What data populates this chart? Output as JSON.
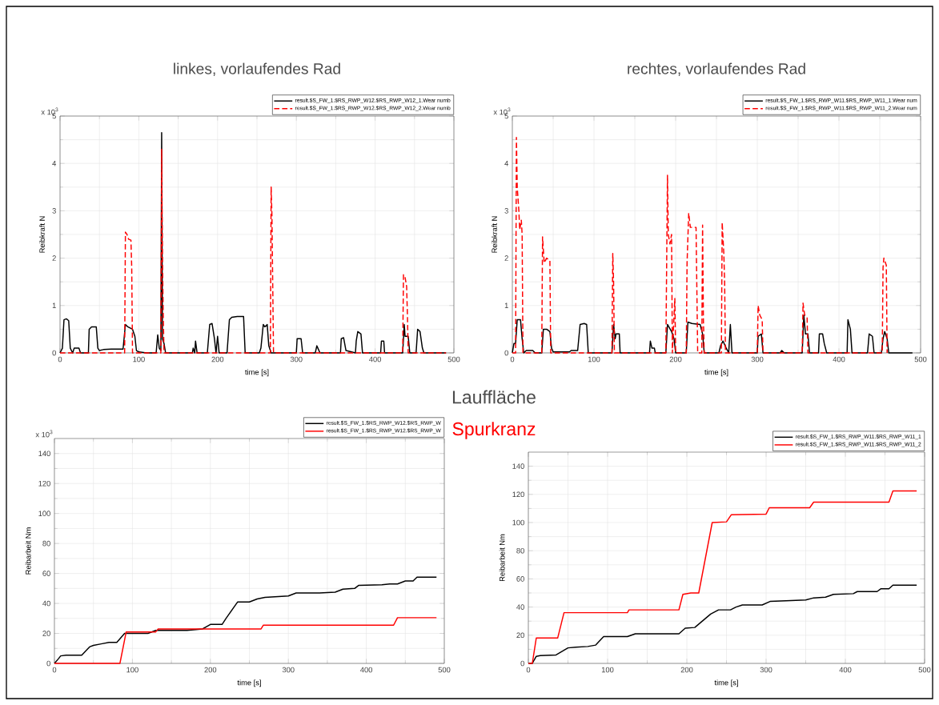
{
  "chart_data": [
    {
      "type": "line",
      "title": "linkes, vorlaufendes Rad",
      "xlabel": "time [s]",
      "ylabel": "Reibkraft N",
      "xlim": [
        0,
        500
      ],
      "xticks": [
        0,
        100,
        200,
        300,
        400,
        500
      ],
      "ylim": [
        0,
        5
      ],
      "yticks": [
        0,
        1,
        2,
        3,
        4,
        5
      ],
      "grid": true,
      "legend": "top right",
      "annotations": [
        "x 10$^{3}$"
      ],
      "series": [
        {
          "name": "result.$S_FW_1.$RS_RWP_W12.$RS_RWP_W12_1.Wear numb",
          "color": "#000000",
          "line_style": "solid",
          "x": [
            0,
            3,
            5,
            8,
            11,
            13,
            16,
            18,
            24,
            26,
            36,
            37,
            40,
            46,
            48,
            50,
            55,
            65,
            80,
            83,
            86,
            92,
            95,
            97,
            100,
            110,
            122,
            124,
            126,
            128,
            129,
            130,
            132,
            134,
            140,
            168,
            169,
            171,
            172,
            174,
            187,
            190,
            193,
            196,
            198,
            200,
            202,
            212,
            215,
            218,
            225,
            233,
            235,
            253,
            255,
            258,
            260,
            263,
            265,
            268,
            300,
            301,
            306,
            308,
            324,
            326,
            330,
            356,
            357,
            360,
            363,
            375,
            376,
            378,
            382,
            384,
            407,
            408,
            411,
            412,
            435,
            437,
            438,
            442,
            444,
            452,
            454,
            457,
            460,
            462,
            490
          ],
          "values": [
            0,
            0.1,
            0.7,
            0.72,
            0.68,
            0.1,
            0,
            0.1,
            0.1,
            0,
            0,
            0.5,
            0.55,
            0.55,
            0.1,
            0.05,
            0.07,
            0.08,
            0.08,
            0.6,
            0.55,
            0.5,
            0.35,
            0.05,
            0.02,
            0,
            0,
            0.38,
            0.1,
            0.05,
            4.65,
            0.3,
            0.2,
            0,
            0,
            0,
            0.1,
            0,
            0.25,
            0,
            0,
            0.6,
            0.62,
            0.3,
            0,
            0.35,
            0,
            0,
            0.7,
            0.75,
            0.77,
            0.77,
            0,
            0,
            0.1,
            0.6,
            0.55,
            0.6,
            0.15,
            0,
            0,
            0.3,
            0.3,
            0,
            0,
            0.15,
            0,
            0,
            0.3,
            0.32,
            0.05,
            0,
            0.25,
            0.45,
            0.4,
            0,
            0,
            0.25,
            0.25,
            0,
            0,
            0.6,
            0.35,
            0.35,
            0,
            0,
            0.5,
            0.45,
            0.1,
            0,
            0
          ]
        },
        {
          "name": "result.$S_FW_1.$RS_RWP_W12.$RS_RWP_W12_2.Wear numb",
          "color": "#ff0000",
          "line_style": "dashed",
          "x": [
            0,
            82,
            83,
            85,
            87,
            90,
            91,
            92,
            128,
            129,
            130,
            131,
            132,
            267,
            268,
            269,
            271,
            435,
            436,
            438,
            440,
            441,
            442,
            490
          ],
          "values": [
            0,
            0,
            2.55,
            2.5,
            2.4,
            2.38,
            1.8,
            0,
            0,
            4.3,
            2.0,
            0.8,
            0,
            0,
            3.5,
            2.9,
            0,
            0,
            1.65,
            1.6,
            1.4,
            0.8,
            0,
            0
          ]
        }
      ]
    },
    {
      "type": "line",
      "title": "rechtes, vorlaufendes Rad",
      "xlabel": "time [s]",
      "ylabel": "Reibkraft N",
      "xlim": [
        0,
        500
      ],
      "xticks": [
        0,
        100,
        200,
        300,
        400,
        500
      ],
      "ylim": [
        0,
        5
      ],
      "yticks": [
        0,
        1,
        2,
        3,
        4,
        5
      ],
      "grid": true,
      "legend": "top right",
      "annotations": [
        "x 10$^{3}$"
      ],
      "series": [
        {
          "name": "result.$S_FW_1.$RS_RWP_W11.$RS_RWP_W11_1.Wear num",
          "color": "#000000",
          "line_style": "solid",
          "x": [
            0,
            2,
            4,
            6,
            10,
            12,
            14,
            17,
            25,
            28,
            36,
            38,
            42,
            46,
            48,
            50,
            70,
            72,
            80,
            83,
            88,
            91,
            93,
            122,
            124,
            126,
            127,
            131,
            132,
            168,
            169,
            171,
            174,
            175,
            188,
            190,
            195,
            198,
            200,
            213,
            215,
            220,
            230,
            233,
            235,
            253,
            255,
            258,
            262,
            265,
            267,
            269,
            300,
            301,
            305,
            307,
            328,
            330,
            333,
            355,
            357,
            359,
            362,
            364,
            375,
            376,
            380,
            382,
            385,
            410,
            411,
            414,
            416,
            435,
            437,
            441,
            443,
            452,
            454,
            456,
            459,
            461,
            490
          ],
          "values": [
            0,
            0.2,
            0.2,
            0.7,
            0.7,
            0.3,
            0,
            0.05,
            0.05,
            0,
            0,
            0.5,
            0.5,
            0.45,
            0.1,
            0.02,
            0.02,
            0.05,
            0.05,
            0.6,
            0.62,
            0.6,
            0,
            0,
            0.6,
            0.3,
            0.4,
            0.4,
            0,
            0,
            0.25,
            0.1,
            0.1,
            0,
            0,
            0.6,
            0.45,
            0.3,
            0,
            0,
            0.65,
            0.62,
            0.6,
            0.4,
            0,
            0,
            0.15,
            0.25,
            0.1,
            0,
            0.6,
            0,
            0,
            0.35,
            0.4,
            0,
            0,
            0.05,
            0,
            0,
            0.8,
            0.4,
            0.4,
            0,
            0,
            0.4,
            0.4,
            0.2,
            0,
            0,
            0.7,
            0.5,
            0,
            0,
            0.4,
            0.35,
            0,
            0,
            0.3,
            0.45,
            0.3,
            0,
            0
          ]
        },
        {
          "name": "result.$S_FW_1.$RS_RWP_W11.$RS_RWP_W11_2.Wear num",
          "color": "#ff0000",
          "line_style": "dashed",
          "x": [
            0,
            4,
            5,
            6,
            8,
            9,
            11,
            12,
            13,
            36,
            37,
            39,
            42,
            46,
            47,
            122,
            123,
            124,
            125,
            188,
            190,
            191,
            193,
            195,
            196,
            199,
            200,
            213,
            214,
            216,
            218,
            225,
            227,
            232,
            233,
            234,
            235,
            256,
            257,
            259,
            260,
            261,
            300,
            301,
            303,
            306,
            307,
            355,
            356,
            358,
            361,
            362,
            453,
            454,
            455,
            458,
            459
          ],
          "values": [
            0,
            0,
            4.55,
            3.5,
            3.0,
            2.6,
            2.8,
            2.5,
            0,
            0,
            2.45,
            1.9,
            2.0,
            1.95,
            0,
            0,
            2.1,
            1.5,
            0,
            0,
            3.75,
            2.5,
            2.3,
            2.5,
            0,
            1.15,
            0,
            0,
            1.9,
            2.95,
            2.65,
            2.65,
            0,
            0,
            2.7,
            0.7,
            0,
            0,
            2.75,
            2.1,
            1.5,
            0,
            0,
            1.0,
            0.8,
            0.7,
            0,
            0,
            1.05,
            0.8,
            0.75,
            0,
            0,
            1.8,
            2.0,
            1.85,
            0
          ]
        }
      ]
    },
    {
      "type": "line",
      "xlabel": "time [s]",
      "ylabel": "Reibarbeit Nm",
      "xlim": [
        0,
        500
      ],
      "xticks": [
        0,
        100,
        200,
        300,
        400,
        500
      ],
      "ylim": [
        0,
        150
      ],
      "yticks": [
        0,
        20,
        40,
        60,
        80,
        100,
        120,
        140
      ],
      "grid": true,
      "legend": "top right",
      "annotations": [
        "x 10$^{3}$"
      ],
      "series": [
        {
          "name": "result.$S_FW_1.$RS_RWP_W12.$RS_RWP_W",
          "color": "#000000",
          "line_style": "solid",
          "x": [
            0,
            5,
            8,
            15,
            35,
            45,
            50,
            60,
            70,
            80,
            90,
            100,
            120,
            130,
            150,
            170,
            190,
            200,
            215,
            220,
            235,
            250,
            260,
            270,
            300,
            310,
            340,
            360,
            370,
            385,
            390,
            420,
            430,
            440,
            450,
            460,
            465,
            490
          ],
          "values": [
            0,
            3,
            5,
            5.5,
            5.5,
            11,
            12,
            13,
            14,
            14,
            20,
            20,
            20,
            22,
            22,
            22,
            23,
            26,
            26,
            30,
            41,
            41,
            43,
            44,
            45,
            47,
            47,
            47.5,
            49.5,
            50,
            52,
            52.5,
            53,
            53,
            55,
            55,
            57.5,
            57.5
          ]
        },
        {
          "name": "result.$S_FW_1.$RS_RWP_W12.$RS_RWP_W",
          "color": "#ff0000",
          "line_style": "solid",
          "x": [
            0,
            84,
            92,
            130,
            133,
            190,
            265,
            268,
            435,
            440,
            490
          ],
          "values": [
            0,
            0,
            21,
            21,
            23,
            23,
            23,
            25.5,
            25.5,
            30.5,
            30.5
          ]
        }
      ]
    },
    {
      "type": "line",
      "xlabel": "time [s]",
      "ylabel": "Reibarbeit Nm",
      "xlim": [
        0,
        500
      ],
      "xticks": [
        0,
        100,
        200,
        300,
        400,
        500
      ],
      "ylim": [
        0,
        150
      ],
      "yticks": [
        0,
        20,
        40,
        60,
        80,
        100,
        120,
        140
      ],
      "grid": true,
      "legend": "top right",
      "series": [
        {
          "name": "result.$S_FW_1.$RS_RWP_W11.$RS_RWP_W11_1",
          "color": "#000000",
          "line_style": "solid",
          "x": [
            0,
            5,
            10,
            15,
            35,
            50,
            60,
            75,
            85,
            95,
            125,
            135,
            155,
            190,
            198,
            210,
            230,
            240,
            255,
            262,
            270,
            295,
            305,
            325,
            350,
            360,
            375,
            385,
            410,
            415,
            440,
            445,
            455,
            460,
            490
          ],
          "values": [
            0,
            0,
            5,
            5.5,
            6,
            11,
            11.5,
            12,
            13,
            19,
            19,
            21,
            21,
            21,
            25,
            25.5,
            35,
            38,
            38,
            40,
            41.5,
            41.5,
            44,
            44.5,
            45,
            46.5,
            47,
            49,
            49.5,
            51,
            51,
            53,
            53,
            55.5,
            55.5
          ]
        },
        {
          "name": "result.$S_FW_1.$RS_RWP_W11.$RS_RWP_W11_2",
          "color": "#ff0000",
          "line_style": "solid",
          "x": [
            0,
            5,
            10,
            37,
            45,
            125,
            127,
            190,
            195,
            205,
            215,
            232,
            250,
            256,
            300,
            304,
            355,
            360,
            455,
            460,
            490
          ],
          "values": [
            0,
            0,
            18,
            18,
            36,
            36,
            38,
            38,
            49,
            50,
            50,
            100,
            100.5,
            105.5,
            106,
            110.5,
            110.5,
            114.5,
            114.5,
            122.5,
            122.5
          ]
        }
      ]
    },
    {
      "type": "other",
      "annotations": [
        "Lauffläche",
        "Spurkranz"
      ]
    }
  ]
}
